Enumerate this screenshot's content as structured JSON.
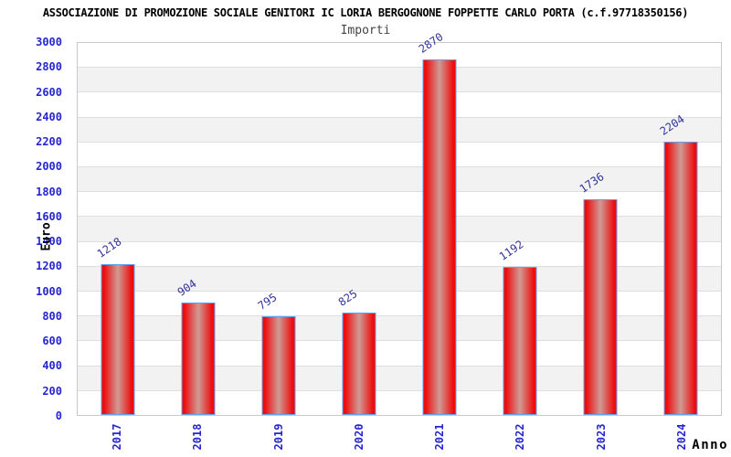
{
  "chart_data": {
    "type": "bar",
    "title": "ASSOCIAZIONE DI PROMOZIONE SOCIALE GENITORI IC LORIA BERGOGNONE FOPPETTE CARLO PORTA (c.f.97718350156)",
    "subtitle": "Importi",
    "xlabel": "Anno",
    "ylabel": "Euro",
    "categories": [
      "2017",
      "2018",
      "2019",
      "2020",
      "2021",
      "2022",
      "2023",
      "2024"
    ],
    "values": [
      1218,
      904,
      795,
      825,
      2870,
      1192,
      1736,
      2204
    ],
    "ylim": [
      0,
      3000
    ],
    "ytick_step": 200,
    "yticks": [
      0,
      200,
      400,
      600,
      800,
      1000,
      1200,
      1400,
      1600,
      1800,
      2000,
      2200,
      2400,
      2600,
      2800,
      3000
    ],
    "grid": "horizontal-bands",
    "legend": "none",
    "colors": {
      "title_color": "#000000",
      "subtitle_color": "#444444",
      "tick_label": "#2626cf",
      "value_label": "#333399",
      "bar_fill_edge": "#ee0b0b",
      "bar_fill_center": "#cf9b95",
      "bar_border": "#60a0f0",
      "band_gray": "#f2f2f2",
      "gridline": "#dedede",
      "plot_border": "#c9c9c9"
    }
  }
}
